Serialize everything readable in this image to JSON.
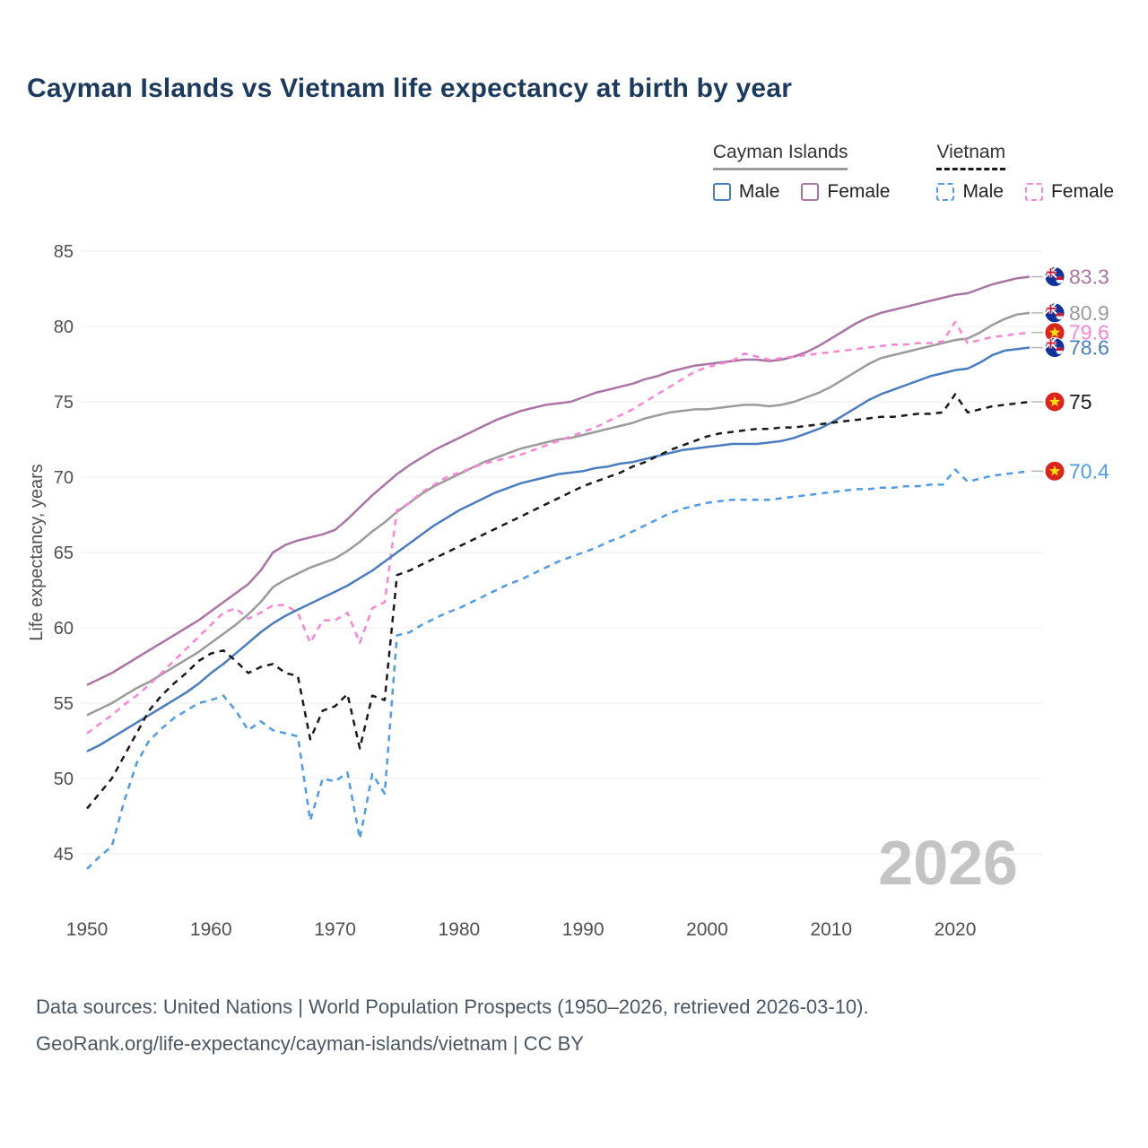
{
  "title": "Cayman Islands vs Vietnam life expectancy at birth by year",
  "watermark": "2026",
  "legend": {
    "groups": [
      {
        "label": "Cayman Islands",
        "line_style": "solid",
        "line_color": "#9b9b9b",
        "items": [
          {
            "label": "Male",
            "color": "#4a7dbf",
            "dashed": false
          },
          {
            "label": "Female",
            "color": "#aa74a4",
            "dashed": false
          }
        ]
      },
      {
        "label": "Vietnam",
        "line_style": "dashed",
        "line_color": "#1a1a1a",
        "items": [
          {
            "label": "Male",
            "color": "#4f9be8",
            "dashed": true
          },
          {
            "label": "Female",
            "color": "#fa85d3",
            "dashed": true
          }
        ]
      }
    ]
  },
  "footer": {
    "line1": "Data sources: United Nations | World Population Prospects (1950–2026, retrieved 2026-03-10).",
    "line2": "GeoRank.org/life-expectancy/cayman-islands/vietnam | CC BY"
  },
  "chart_data": {
    "type": "line",
    "title": "Cayman Islands vs Vietnam life expectancy at birth by year",
    "xlabel": "",
    "ylabel": "Life expectancy, years",
    "xlim": [
      1950,
      2026
    ],
    "ylim": [
      43,
      85
    ],
    "yticks": [
      45,
      50,
      55,
      60,
      65,
      70,
      75,
      80,
      85
    ],
    "xticks": [
      1950,
      1960,
      1970,
      1980,
      1990,
      2000,
      2010,
      2020
    ],
    "grid": "horizontal",
    "legend_position": "top-right",
    "years": [
      1950,
      1951,
      1952,
      1953,
      1954,
      1955,
      1956,
      1957,
      1958,
      1959,
      1960,
      1961,
      1962,
      1963,
      1964,
      1965,
      1966,
      1967,
      1968,
      1969,
      1970,
      1971,
      1972,
      1973,
      1974,
      1975,
      1976,
      1977,
      1978,
      1979,
      1980,
      1981,
      1982,
      1983,
      1984,
      1985,
      1986,
      1987,
      1988,
      1989,
      1990,
      1991,
      1992,
      1993,
      1994,
      1995,
      1996,
      1997,
      1998,
      1999,
      2000,
      2001,
      2002,
      2003,
      2004,
      2005,
      2006,
      2007,
      2008,
      2009,
      2010,
      2011,
      2012,
      2013,
      2014,
      2015,
      2016,
      2017,
      2018,
      2019,
      2020,
      2021,
      2022,
      2023,
      2024,
      2025,
      2026
    ],
    "series": [
      {
        "name": "Cayman Islands Female",
        "country": "Cayman Islands",
        "sex": "Female",
        "color": "#aa74a4",
        "dash": "solid",
        "flag": "cayman-islands",
        "end_label": "83.3",
        "values": [
          56.2,
          56.6,
          57.0,
          57.5,
          58.0,
          58.5,
          59.0,
          59.5,
          60.0,
          60.5,
          61.1,
          61.7,
          62.3,
          62.9,
          63.8,
          65.0,
          65.5,
          65.8,
          66.0,
          66.2,
          66.5,
          67.2,
          68.0,
          68.8,
          69.5,
          70.2,
          70.8,
          71.3,
          71.8,
          72.2,
          72.6,
          73.0,
          73.4,
          73.8,
          74.1,
          74.4,
          74.6,
          74.8,
          74.9,
          75.0,
          75.3,
          75.6,
          75.8,
          76.0,
          76.2,
          76.5,
          76.7,
          77.0,
          77.2,
          77.4,
          77.5,
          77.6,
          77.7,
          77.8,
          77.8,
          77.7,
          77.8,
          78.0,
          78.3,
          78.7,
          79.2,
          79.7,
          80.2,
          80.6,
          80.9,
          81.1,
          81.3,
          81.5,
          81.7,
          81.9,
          82.1,
          82.2,
          82.5,
          82.8,
          83.0,
          83.2,
          83.3
        ]
      },
      {
        "name": "Cayman Islands Both sexes",
        "country": "Cayman Islands",
        "sex": "Both",
        "color": "#9b9b9b",
        "dash": "solid",
        "flag": "cayman-islands",
        "end_label": "80.9",
        "values": [
          54.2,
          54.6,
          55.0,
          55.5,
          56.0,
          56.4,
          56.9,
          57.4,
          57.9,
          58.4,
          59.0,
          59.6,
          60.2,
          60.9,
          61.7,
          62.7,
          63.2,
          63.6,
          64.0,
          64.3,
          64.6,
          65.1,
          65.7,
          66.4,
          67.0,
          67.7,
          68.3,
          68.9,
          69.4,
          69.8,
          70.2,
          70.6,
          71.0,
          71.3,
          71.6,
          71.9,
          72.1,
          72.3,
          72.5,
          72.6,
          72.8,
          73.0,
          73.2,
          73.4,
          73.6,
          73.9,
          74.1,
          74.3,
          74.4,
          74.5,
          74.5,
          74.6,
          74.7,
          74.8,
          74.8,
          74.7,
          74.8,
          75.0,
          75.3,
          75.6,
          76.0,
          76.5,
          77.0,
          77.5,
          77.9,
          78.1,
          78.3,
          78.5,
          78.7,
          78.9,
          79.1,
          79.2,
          79.6,
          80.1,
          80.5,
          80.8,
          80.9
        ]
      },
      {
        "name": "Vietnam Female",
        "country": "Vietnam",
        "sex": "Female",
        "color": "#fa85d3",
        "dash": "dashed",
        "flag": "vietnam",
        "end_label": "79.6",
        "values": [
          53.0,
          53.6,
          54.2,
          54.9,
          55.5,
          56.2,
          57.0,
          57.8,
          58.6,
          59.4,
          60.2,
          61.0,
          61.3,
          60.6,
          61.0,
          61.5,
          61.5,
          61.0,
          59.0,
          60.5,
          60.5,
          61.0,
          59.0,
          61.3,
          61.7,
          67.8,
          68.3,
          69.0,
          69.5,
          70.0,
          70.3,
          70.6,
          70.9,
          71.1,
          71.3,
          71.5,
          71.8,
          72.1,
          72.4,
          72.7,
          73.0,
          73.3,
          73.7,
          74.1,
          74.5,
          75.0,
          75.5,
          76.0,
          76.5,
          77.0,
          77.3,
          77.5,
          77.7,
          78.2,
          78.0,
          77.8,
          77.9,
          78.0,
          78.1,
          78.2,
          78.3,
          78.4,
          78.5,
          78.6,
          78.7,
          78.8,
          78.8,
          78.9,
          78.9,
          79.0,
          80.3,
          78.9,
          79.1,
          79.3,
          79.4,
          79.5,
          79.6
        ]
      },
      {
        "name": "Cayman Islands Male",
        "country": "Cayman Islands",
        "sex": "Male",
        "color": "#4a7dbf",
        "dash": "solid",
        "flag": "cayman-islands",
        "end_label": "78.6",
        "values": [
          51.8,
          52.2,
          52.7,
          53.2,
          53.7,
          54.2,
          54.7,
          55.2,
          55.7,
          56.3,
          57.0,
          57.6,
          58.3,
          59.0,
          59.7,
          60.3,
          60.8,
          61.2,
          61.6,
          62.0,
          62.4,
          62.8,
          63.3,
          63.8,
          64.4,
          65.0,
          65.6,
          66.2,
          66.8,
          67.3,
          67.8,
          68.2,
          68.6,
          69.0,
          69.3,
          69.6,
          69.8,
          70.0,
          70.2,
          70.3,
          70.4,
          70.6,
          70.7,
          70.9,
          71.0,
          71.2,
          71.4,
          71.6,
          71.8,
          71.9,
          72.0,
          72.1,
          72.2,
          72.2,
          72.2,
          72.3,
          72.4,
          72.6,
          72.9,
          73.2,
          73.6,
          74.1,
          74.6,
          75.1,
          75.5,
          75.8,
          76.1,
          76.4,
          76.7,
          76.9,
          77.1,
          77.2,
          77.6,
          78.1,
          78.4,
          78.5,
          78.6
        ]
      },
      {
        "name": "Vietnam Both sexes",
        "country": "Vietnam",
        "sex": "Both",
        "color": "#1a1a1a",
        "dash": "dashed",
        "flag": "vietnam",
        "end_label": "75",
        "values": [
          48.0,
          49.0,
          50.0,
          51.5,
          53.0,
          54.5,
          55.5,
          56.3,
          57.0,
          57.8,
          58.3,
          58.5,
          57.8,
          57.0,
          57.4,
          57.6,
          57.0,
          56.8,
          52.6,
          54.5,
          54.8,
          55.6,
          52.0,
          55.5,
          55.2,
          63.5,
          63.8,
          64.2,
          64.6,
          65.0,
          65.4,
          65.8,
          66.2,
          66.6,
          67.0,
          67.4,
          67.8,
          68.2,
          68.6,
          69.0,
          69.4,
          69.7,
          70.0,
          70.3,
          70.7,
          71.0,
          71.4,
          71.8,
          72.1,
          72.4,
          72.7,
          72.9,
          73.0,
          73.1,
          73.2,
          73.2,
          73.3,
          73.3,
          73.4,
          73.5,
          73.6,
          73.7,
          73.8,
          73.9,
          74.0,
          74.0,
          74.1,
          74.2,
          74.2,
          74.3,
          75.5,
          74.3,
          74.5,
          74.7,
          74.8,
          74.9,
          75.0
        ]
      },
      {
        "name": "Vietnam Male",
        "country": "Vietnam",
        "sex": "Male",
        "color": "#4f9be8",
        "dash": "dashed",
        "flag": "vietnam",
        "end_label": "70.4",
        "values": [
          44.0,
          44.8,
          45.5,
          48.5,
          51.0,
          52.5,
          53.3,
          54.0,
          54.5,
          55.0,
          55.2,
          55.5,
          54.5,
          53.2,
          53.8,
          53.2,
          53.0,
          52.8,
          47.2,
          50.0,
          49.8,
          50.4,
          46.0,
          50.3,
          49.0,
          59.5,
          59.7,
          60.2,
          60.6,
          61.0,
          61.3,
          61.7,
          62.1,
          62.5,
          62.9,
          63.2,
          63.6,
          64.0,
          64.4,
          64.7,
          65.0,
          65.3,
          65.7,
          66.0,
          66.4,
          66.8,
          67.2,
          67.6,
          67.9,
          68.1,
          68.3,
          68.4,
          68.5,
          68.5,
          68.5,
          68.5,
          68.6,
          68.7,
          68.8,
          68.9,
          69.0,
          69.1,
          69.2,
          69.2,
          69.3,
          69.3,
          69.4,
          69.4,
          69.5,
          69.5,
          70.5,
          69.7,
          69.9,
          70.1,
          70.2,
          70.3,
          70.4
        ]
      }
    ]
  }
}
